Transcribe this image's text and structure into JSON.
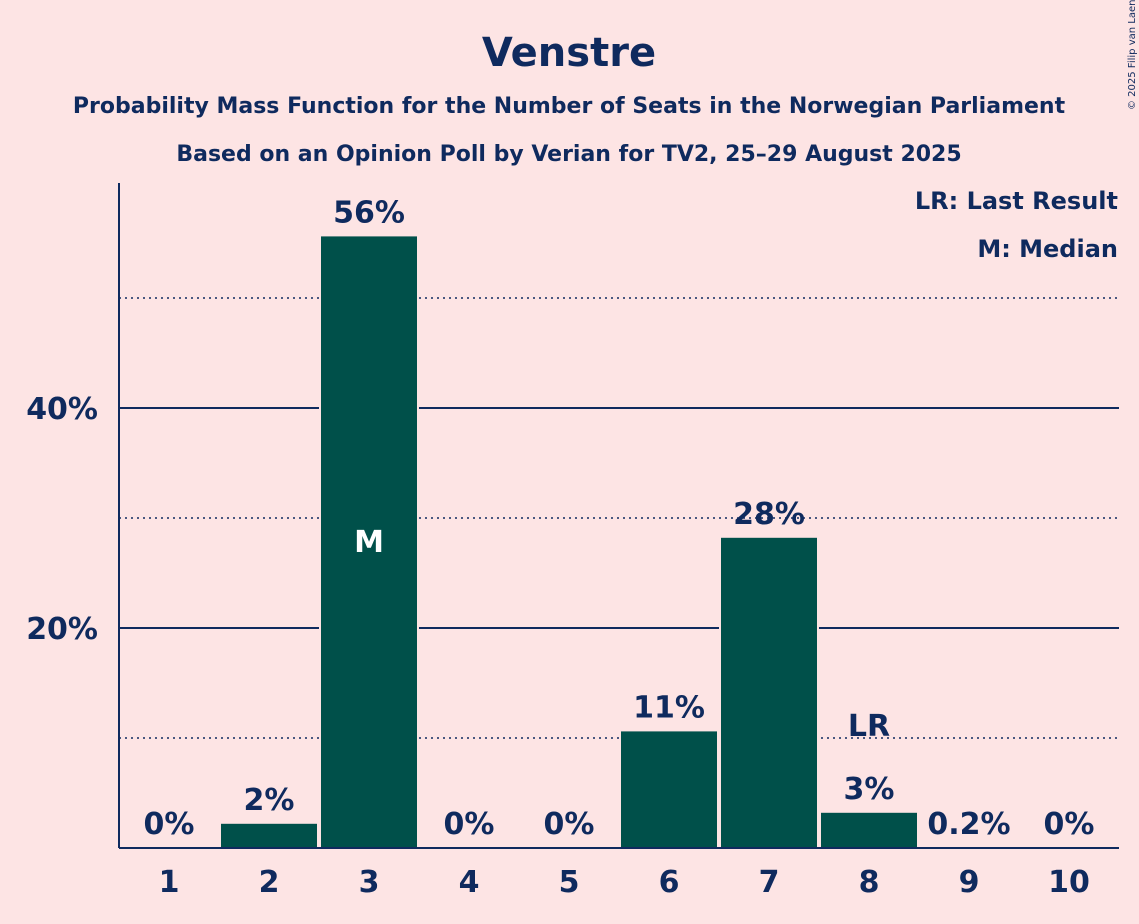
{
  "chart_data": {
    "type": "bar",
    "title": "Venstre",
    "subtitle": "Probability Mass Function for the Number of Seats in the Norwegian Parliament",
    "subtitle2": "Based on an Opinion Poll by Verian for TV2, 25–29 August 2025",
    "categories": [
      "1",
      "2",
      "3",
      "4",
      "5",
      "6",
      "7",
      "8",
      "9",
      "10"
    ],
    "values": [
      0,
      2.2,
      55.6,
      0,
      0,
      10.6,
      28.2,
      3.2,
      0.2,
      0
    ],
    "value_labels": [
      "0%",
      "2%",
      "56%",
      "0%",
      "0%",
      "11%",
      "28%",
      "3%",
      "0.2%",
      "0%"
    ],
    "ylim": [
      0,
      60
    ],
    "yticks": [
      {
        "value": 20,
        "label": "20%"
      },
      {
        "value": 40,
        "label": "40%"
      }
    ],
    "minor_gridlines": [
      10,
      30,
      50
    ],
    "median_index": 2,
    "median_label": "M",
    "last_result_index": 7,
    "last_result_label": "LR",
    "legend": [
      "LR: Last Result",
      "M: Median"
    ],
    "legend_position": "top-right",
    "copyright": "© 2025 Filip van Laenen",
    "colors": {
      "bar": "#00504a",
      "text": "#0f2a5e",
      "background": "#fde4e4"
    }
  }
}
